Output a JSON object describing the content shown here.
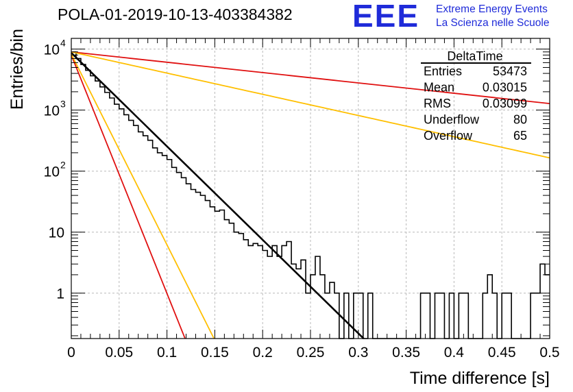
{
  "header": {
    "title": "POLA-01-2019-10-13-403384382",
    "logo_mark": "EEE",
    "logo_line1": "Extreme Energy Events",
    "logo_line2": "La Scienza nelle Scuole"
  },
  "stats": {
    "title": "DeltaTime",
    "rows": [
      {
        "label": "Entries",
        "value": "53473"
      },
      {
        "label": "Mean",
        "value": "0.03015"
      },
      {
        "label": "RMS",
        "value": "0.03099"
      },
      {
        "label": "Underflow",
        "value": "80"
      },
      {
        "label": "Overflow",
        "value": "65"
      }
    ]
  },
  "colors": {
    "histogram": "#000000",
    "fit": "#000000",
    "red_curve": "#e01010",
    "orange_curve": "#ffbf00",
    "grid": "#b8b8b8",
    "logo": "#1f2bd9"
  },
  "chart_data": {
    "type": "line",
    "xlabel": "Time difference [s]",
    "ylabel": "Entries/bin",
    "xlim": [
      0,
      0.5
    ],
    "ylim": [
      0.18,
      15000
    ],
    "y_scale": "log",
    "grid": true,
    "x_ticks": [
      "0",
      "0.05",
      "0.1",
      "0.15",
      "0.2",
      "0.25",
      "0.3",
      "0.35",
      "0.4",
      "0.45",
      "0.5"
    ],
    "y_ticks": [
      {
        "value": 1,
        "label": "1"
      },
      {
        "value": 10,
        "label": "10"
      },
      {
        "value": 100,
        "label": "10",
        "exp": "2"
      },
      {
        "value": 1000,
        "label": "10",
        "exp": "3"
      },
      {
        "value": 10000,
        "label": "10",
        "exp": "4"
      }
    ],
    "histogram": {
      "name": "DeltaTime",
      "bin_width": 0.005,
      "x_start": 0,
      "values": [
        9000,
        7000,
        5600,
        4500,
        3650,
        3000,
        2400,
        1950,
        1580,
        1250,
        1050,
        840,
        680,
        560,
        440,
        380,
        320,
        240,
        200,
        180,
        155,
        115,
        95,
        78,
        62,
        50,
        45,
        40,
        33,
        26,
        22,
        23,
        16,
        14,
        10,
        9.5,
        7.5,
        6,
        6.5,
        6,
        5,
        4,
        6,
        4,
        6,
        7,
        3,
        2.5,
        3.5,
        1,
        2,
        4,
        2,
        1,
        1.5,
        1,
        0,
        1,
        0,
        1,
        1,
        0,
        1,
        0,
        0,
        0,
        0,
        0.12,
        0,
        0,
        0,
        0,
        0,
        1,
        1,
        0,
        1,
        1,
        0,
        1,
        0,
        1,
        1,
        0,
        0,
        0,
        1,
        2,
        1,
        0,
        1,
        1,
        0,
        0,
        0,
        0,
        1,
        1,
        3,
        2
      ]
    },
    "series": [
      {
        "color": "#000000",
        "type": "exponential",
        "amplitude": 8700,
        "slope": -35.3,
        "x_range": [
          0,
          0.33
        ]
      },
      {
        "color": "#e01010",
        "type": "exponential",
        "amplitude": 8000,
        "slope": -90,
        "x_range": [
          0,
          0.12
        ]
      },
      {
        "color": "#e01010",
        "type": "exponential",
        "amplitude": 9000,
        "slope": -3.9,
        "x_range": [
          0,
          0.5
        ]
      },
      {
        "color": "#ffbf00",
        "type": "exponential",
        "amplitude": 8300,
        "slope": -72,
        "x_range": [
          0,
          0.15
        ]
      },
      {
        "color": "#ffbf00",
        "type": "exponential",
        "amplitude": 9000,
        "slope": -8.0,
        "x_range": [
          0,
          0.5
        ]
      }
    ]
  }
}
